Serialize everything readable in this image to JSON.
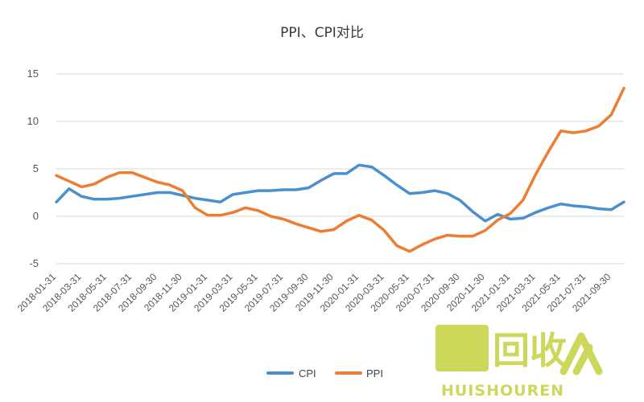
{
  "chart_data": {
    "type": "line",
    "title": "PPI、CPI对比",
    "xlabel": "",
    "ylabel": "",
    "ylim": [
      -5,
      15
    ],
    "yticks": [
      -5,
      0,
      5,
      10,
      15
    ],
    "grid": true,
    "legend_position": "bottom",
    "x": [
      "2018-01-31",
      "2018-02-28",
      "2018-03-31",
      "2018-04-30",
      "2018-05-31",
      "2018-06-30",
      "2018-07-31",
      "2018-08-31",
      "2018-09-30",
      "2018-10-31",
      "2018-11-30",
      "2018-12-31",
      "2019-01-31",
      "2019-02-28",
      "2019-03-31",
      "2019-04-30",
      "2019-05-31",
      "2019-06-30",
      "2019-07-31",
      "2019-08-31",
      "2019-09-30",
      "2019-10-31",
      "2019-11-30",
      "2019-12-31",
      "2020-01-31",
      "2020-02-29",
      "2020-03-31",
      "2020-04-30",
      "2020-05-31",
      "2020-06-30",
      "2020-07-31",
      "2020-08-31",
      "2020-09-30",
      "2020-10-31",
      "2020-11-30",
      "2020-12-31",
      "2021-01-31",
      "2021-02-28",
      "2021-03-31",
      "2021-04-30",
      "2021-05-31",
      "2021-06-30",
      "2021-07-31",
      "2021-08-31",
      "2021-09-30",
      "2021-10-31"
    ],
    "x_tick_labels": [
      "2018-01-31",
      "2018-03-31",
      "2018-05-31",
      "2018-07-31",
      "2018-09-30",
      "2018-11-30",
      "2019-01-31",
      "2019-03-31",
      "2019-05-31",
      "2019-07-31",
      "2019-09-30",
      "2019-11-30",
      "2020-01-31",
      "2020-03-31",
      "2020-05-31",
      "2020-07-31",
      "2020-09-30",
      "2020-11-30",
      "2021-01-31",
      "2021-03-31",
      "2021-05-31",
      "2021-07-31",
      "2021-09-30"
    ],
    "series": [
      {
        "name": "CPI",
        "color": "#4a90cf",
        "values": [
          1.5,
          2.9,
          2.1,
          1.8,
          1.8,
          1.9,
          2.1,
          2.3,
          2.5,
          2.5,
          2.2,
          1.9,
          1.7,
          1.5,
          2.3,
          2.5,
          2.7,
          2.7,
          2.8,
          2.8,
          3.0,
          3.8,
          4.5,
          4.5,
          5.4,
          5.2,
          4.3,
          3.3,
          2.4,
          2.5,
          2.7,
          2.4,
          1.7,
          0.5,
          -0.5,
          0.2,
          -0.3,
          -0.2,
          0.4,
          0.9,
          1.3,
          1.1,
          1.0,
          0.8,
          0.7,
          1.5
        ]
      },
      {
        "name": "PPI",
        "color": "#ed7d31",
        "values": [
          4.3,
          3.7,
          3.1,
          3.4,
          4.1,
          4.6,
          4.6,
          4.1,
          3.6,
          3.3,
          2.7,
          0.9,
          0.1,
          0.1,
          0.4,
          0.9,
          0.6,
          0.0,
          -0.3,
          -0.8,
          -1.2,
          -1.6,
          -1.4,
          -0.5,
          0.1,
          -0.4,
          -1.5,
          -3.1,
          -3.7,
          -3.0,
          -2.4,
          -2.0,
          -2.1,
          -2.1,
          -1.5,
          -0.4,
          0.3,
          1.7,
          4.4,
          6.8,
          9.0,
          8.8,
          9.0,
          9.5,
          10.7,
          13.5
        ]
      }
    ]
  },
  "watermark": {
    "logo_text": "回收",
    "brand_text": "HUISHOUREN",
    "color": "#c8d44a"
  }
}
